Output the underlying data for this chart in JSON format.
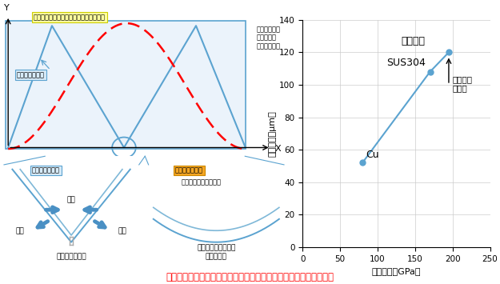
{
  "scatter_x": [
    80,
    170,
    195
  ],
  "scatter_y": [
    52,
    108,
    120
  ],
  "scatter_labels": [
    "Cu",
    "SUS304",
    "ピアノ線"
  ],
  "scatter_color": "#5BA3D0",
  "xlabel": "弾性係数（GPa）",
  "ylabel": "波形振幅（μm）",
  "xlim": [
    0,
    250
  ],
  "ylim": [
    0,
    140
  ],
  "xticks": [
    0,
    50,
    100,
    150,
    200,
    250
  ],
  "yticks": [
    0,
    20,
    40,
    60,
    80,
    100,
    120,
    140
  ],
  "arrow_annotation": "今回用い\nた線材",
  "main_title_color": "#FF0000",
  "main_title": "伸縮により破断しないためには高い弾性の線材を用いる必要がある",
  "note_text": "・波形は弾性\n係数の大き\nさに依存する",
  "wave_box_bg": "#EBF3FB",
  "wave_box_border": "#5BA3D0",
  "low_label": "弾性が低い材料",
  "high_label_wave": "弾性が高い材料",
  "high_label_wave2": "（今回開発したもの）",
  "high_label_bottom": "弾性が高い材料",
  "high_label_bottom2": "（今回開発したもの）",
  "low_fatigue": "疲労により破断",
  "high_nodamage": "歪が発生しにくく、\n破断しない",
  "compress_label": "圧縮",
  "tension_label": "引張",
  "bg_color": "#FFFFFF"
}
